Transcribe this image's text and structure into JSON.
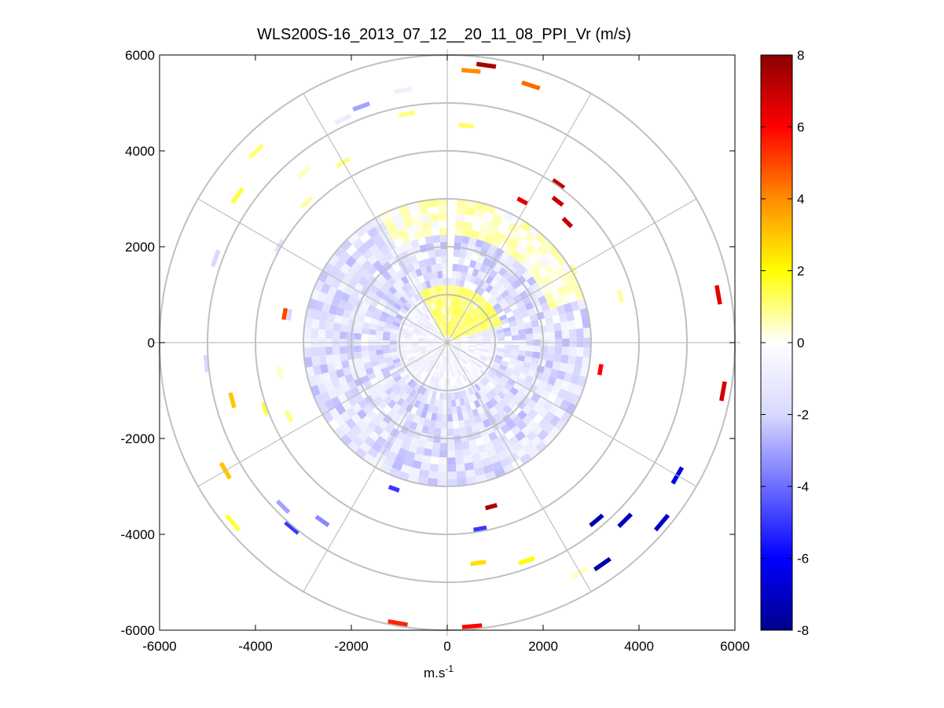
{
  "chart_data": {
    "type": "heatmap",
    "subtype": "polar-ppi",
    "title": "WLS200S-16_2013_07_12__20_11_08_PPI_Vr (m/s)",
    "xlabel_base": "m.s",
    "xlabel_exp": "-1",
    "ylabel": "",
    "xlim": [
      -6000,
      6000
    ],
    "ylim": [
      -6000,
      6000
    ],
    "xticks": [
      "-6000",
      "-4000",
      "-2000",
      "0",
      "2000",
      "4000",
      "6000"
    ],
    "yticks": [
      "6000",
      "4000",
      "2000",
      "0",
      "-2000",
      "-4000",
      "-6000"
    ],
    "xtick_values": [
      -6000,
      -4000,
      -2000,
      0,
      2000,
      4000,
      6000
    ],
    "ytick_values": [
      6000,
      4000,
      2000,
      0,
      -2000,
      -4000,
      -6000
    ],
    "polar_grid": {
      "ring_radii": [
        1000,
        2000,
        3000,
        4000,
        5000,
        6000
      ],
      "spoke_angles_deg": [
        0,
        30,
        60,
        90,
        120,
        150,
        180,
        210,
        240,
        270,
        300,
        330
      ],
      "grid": true
    },
    "colorbar": {
      "min": -8,
      "max": 8,
      "ticks": [
        "8",
        "6",
        "4",
        "2",
        "0",
        "-2",
        "-4",
        "-6",
        "-8"
      ],
      "tick_values": [
        8,
        6,
        4,
        2,
        0,
        -2,
        -4,
        -6,
        -8
      ],
      "colormap": [
        "#00008b",
        "#0000ff",
        "#6d6dff",
        "#d8d8ff",
        "#ffffff",
        "#ffff00",
        "#ff8c00",
        "#ff0000",
        "#8b0000"
      ]
    },
    "field": {
      "description": "radial velocity Vr (m/s) by azimuth and range",
      "dense_region_max_range": 3000,
      "positive_sector_az_deg": [
        -30,
        70
      ],
      "near_field": {
        "range": [
          0,
          1200
        ],
        "vr": 1.0
      },
      "blocked_azimuth_deg": [
        -2,
        2
      ],
      "sparse_gates": [
        {
          "az": 8,
          "r": 5800,
          "vr": 7.5
        },
        {
          "az": 5,
          "r": 5650,
          "vr": 4.0
        },
        {
          "az": 18,
          "r": 5600,
          "vr": 4.5
        },
        {
          "az": 35,
          "r": 4000,
          "vr": 7.0
        },
        {
          "az": 38,
          "r": 3700,
          "vr": 7.0
        },
        {
          "az": 45,
          "r": 3500,
          "vr": 7.0
        },
        {
          "az": 28,
          "r": 3300,
          "vr": 6.5
        },
        {
          "az": 5,
          "r": 4500,
          "vr": 1.2
        },
        {
          "az": -10,
          "r": 4800,
          "vr": 1.0
        },
        {
          "az": -30,
          "r": 4300,
          "vr": 1.0
        },
        {
          "az": -45,
          "r": 4100,
          "vr": 0.8
        },
        {
          "az": -55,
          "r": 5300,
          "vr": 1.5
        },
        {
          "az": -80,
          "r": 3400,
          "vr": 5.0
        },
        {
          "az": 80,
          "r": 5700,
          "vr": 6.5
        },
        {
          "az": 100,
          "r": 5800,
          "vr": 6.8
        },
        {
          "az": 60,
          "r": 3000,
          "vr": 0.8
        },
        {
          "az": 75,
          "r": 3700,
          "vr": 0.8
        },
        {
          "az": 100,
          "r": 3200,
          "vr": 6.0
        },
        {
          "az": 120,
          "r": 5500,
          "vr": -6.5
        },
        {
          "az": 130,
          "r": 5800,
          "vr": -7.0
        },
        {
          "az": 135,
          "r": 5200,
          "vr": -7.0
        },
        {
          "az": 140,
          "r": 4800,
          "vr": -7.5
        },
        {
          "az": 145,
          "r": 5600,
          "vr": -7.5
        },
        {
          "az": 165,
          "r": 3500,
          "vr": 7.5
        },
        {
          "az": 170,
          "r": 3900,
          "vr": -5.0
        },
        {
          "az": 175,
          "r": 5900,
          "vr": 6.0
        },
        {
          "az": 190,
          "r": 5900,
          "vr": 5.5
        },
        {
          "az": 172,
          "r": 4600,
          "vr": 2.5
        },
        {
          "az": 160,
          "r": 4800,
          "vr": 2.0
        },
        {
          "az": 150,
          "r": 5500,
          "vr": 0.5
        },
        {
          "az": 200,
          "r": 3200,
          "vr": -5.0
        },
        {
          "az": 215,
          "r": 4500,
          "vr": -3.5
        },
        {
          "az": 220,
          "r": 5000,
          "vr": -5.0
        },
        {
          "az": 225,
          "r": 4800,
          "vr": -3.0
        },
        {
          "az": 230,
          "r": 5800,
          "vr": 1.5
        },
        {
          "az": 240,
          "r": 5300,
          "vr": 3.0
        },
        {
          "az": 250,
          "r": 4000,
          "vr": 1.5
        },
        {
          "az": 255,
          "r": 4600,
          "vr": 3.0
        },
        {
          "az": 245,
          "r": 3600,
          "vr": 1.0
        },
        {
          "az": 260,
          "r": 3500,
          "vr": 0.5
        },
        {
          "az": 265,
          "r": 5000,
          "vr": -2.0
        },
        {
          "az": 280,
          "r": 3300,
          "vr": -2.0
        },
        {
          "az": 290,
          "r": 5100,
          "vr": -2.0
        },
        {
          "az": 300,
          "r": 4000,
          "vr": -1.5
        },
        {
          "az": 315,
          "r": 5600,
          "vr": 1.0
        },
        {
          "az": 320,
          "r": 4600,
          "vr": 0.5
        },
        {
          "az": 335,
          "r": 5100,
          "vr": -1.0
        },
        {
          "az": 340,
          "r": 5200,
          "vr": -3.0
        },
        {
          "az": 350,
          "r": 5300,
          "vr": -0.8
        }
      ]
    }
  }
}
